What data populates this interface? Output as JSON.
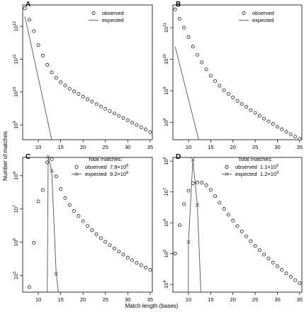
{
  "figure": {
    "ylabel": "Number of matches",
    "xlabel": "Match length (bases)"
  },
  "chart_data": [
    {
      "panel": "A",
      "type": "scatter",
      "scale": "log",
      "xlim": [
        6.5,
        35.5
      ],
      "ylim_log10": [
        8.55,
        12.65
      ],
      "xticks": [
        10,
        15,
        20,
        25,
        30,
        35
      ],
      "yticks": [
        {
          "exp": 9,
          "label": "10",
          "sup": "9"
        },
        {
          "exp": 10,
          "label": "10",
          "sup": "10"
        },
        {
          "exp": 11,
          "label": "10",
          "sup": "11"
        },
        {
          "exp": 12,
          "label": "10",
          "sup": "12"
        }
      ],
      "legend": {
        "observed": "observed",
        "expected": "expected",
        "title": "",
        "observed_value": "",
        "expected_value": ""
      },
      "series": [
        {
          "name": "observed",
          "style": "points",
          "x": [
            7,
            8,
            9,
            10,
            11,
            12,
            13,
            14,
            15,
            16,
            17,
            18,
            19,
            20,
            21,
            22,
            23,
            24,
            25,
            26,
            27,
            28,
            29,
            30,
            31,
            32,
            33,
            34,
            35
          ],
          "log10_y": [
            12.55,
            12.2,
            11.85,
            11.43,
            11.11,
            10.83,
            10.6,
            10.43,
            10.3,
            10.2,
            10.1,
            10.02,
            9.94,
            9.86,
            9.78,
            9.71,
            9.63,
            9.56,
            9.49,
            9.42,
            9.35,
            9.28,
            9.21,
            9.14,
            9.07,
            9.0,
            8.93,
            8.86,
            8.78
          ]
        },
        {
          "name": "expected",
          "style": "line",
          "x": [
            7,
            13
          ],
          "log10_y": [
            12.3,
            8.55
          ]
        }
      ]
    },
    {
      "panel": "B",
      "type": "scatter",
      "scale": "log",
      "xlim": [
        6.5,
        35.5
      ],
      "ylim_log10": [
        7.45,
        11.72
      ],
      "xticks": [
        10,
        15,
        20,
        25,
        30,
        35
      ],
      "yticks": [
        {
          "exp": 8,
          "label": "10",
          "sup": "8"
        },
        {
          "exp": 9,
          "label": "10",
          "sup": "9"
        },
        {
          "exp": 10,
          "label": "10",
          "sup": "10"
        },
        {
          "exp": 11,
          "label": "10",
          "sup": "11"
        }
      ],
      "legend": {
        "observed": "observed",
        "expected": "expected",
        "title": "",
        "observed_value": "",
        "expected_value": ""
      },
      "series": [
        {
          "name": "observed",
          "style": "points",
          "x": [
            7,
            8,
            9,
            10,
            11,
            12,
            13,
            14,
            15,
            16,
            17,
            18,
            19,
            20,
            21,
            22,
            23,
            24,
            25,
            26,
            27,
            28,
            29,
            30,
            31,
            32,
            33,
            34,
            35
          ],
          "log10_y": [
            11.58,
            11.28,
            11.0,
            10.7,
            10.4,
            10.14,
            9.9,
            9.68,
            9.48,
            9.31,
            9.16,
            9.02,
            8.9,
            8.79,
            8.68,
            8.58,
            8.49,
            8.39,
            8.3,
            8.21,
            8.12,
            8.03,
            7.95,
            7.86,
            7.78,
            7.7,
            7.62,
            7.55,
            7.48
          ]
        },
        {
          "name": "expected",
          "style": "line",
          "x": [
            7,
            12.3
          ],
          "log10_y": [
            10.4,
            7.45
          ]
        }
      ]
    },
    {
      "panel": "C",
      "type": "scatter",
      "scale": "log",
      "xlim": [
        6.5,
        35.5
      ],
      "ylim_log10": [
        4.5,
        8.55
      ],
      "xticks": [
        10,
        15,
        20,
        25,
        30,
        35
      ],
      "yticks": [
        {
          "exp": 5,
          "label": "10",
          "sup": "5"
        },
        {
          "exp": 6,
          "label": "10",
          "sup": "6"
        },
        {
          "exp": 7,
          "label": "10",
          "sup": "7"
        },
        {
          "exp": 8,
          "label": "10",
          "sup": "8"
        }
      ],
      "legend": {
        "title": "Total matches:",
        "observed": "observed",
        "observed_value": "7.8×10",
        "observed_exp": "8",
        "expected": "expected",
        "expected_value": "9.2×10",
        "expected_exp": "8"
      },
      "series": [
        {
          "name": "observed",
          "style": "points",
          "x": [
            8,
            9,
            10,
            11,
            12,
            13,
            14,
            15,
            16,
            17,
            18,
            19,
            20,
            21,
            22,
            23,
            24,
            25,
            26,
            27,
            28,
            29,
            30,
            31,
            32,
            33,
            34,
            35
          ],
          "log10_y": [
            4.65,
            5.98,
            7.23,
            7.57,
            8.4,
            8.5,
            7.98,
            7.6,
            7.33,
            7.12,
            6.94,
            6.79,
            6.63,
            6.49,
            6.36,
            6.24,
            6.12,
            6.01,
            5.91,
            5.81,
            5.72,
            5.63,
            5.54,
            5.46,
            5.38,
            5.31,
            5.24,
            5.17
          ]
        },
        {
          "name": "expected",
          "style": "line-cross",
          "x": [
            12,
            12.2,
            13,
            14,
            14.5
          ],
          "log10_y": [
            4.5,
            8.57,
            8.15,
            5.05,
            4.5
          ]
        }
      ]
    },
    {
      "panel": "D",
      "type": "scatter",
      "scale": "log",
      "xlim": [
        6.5,
        35.5
      ],
      "ylim_log10": [
        3.75,
        8.12
      ],
      "xticks": [
        10,
        15,
        20,
        25,
        30,
        35
      ],
      "yticks": [
        {
          "exp": 4,
          "label": "10",
          "sup": "4"
        },
        {
          "exp": 5,
          "label": "10",
          "sup": "5"
        },
        {
          "exp": 6,
          "label": "10",
          "sup": "6"
        },
        {
          "exp": 7,
          "label": "10",
          "sup": "7"
        },
        {
          "exp": 8,
          "label": "10",
          "sup": "8"
        }
      ],
      "legend": {
        "title": "Total matches:",
        "observed": "observed",
        "observed_value": "1.1×10",
        "observed_exp": "9",
        "expected": "expected",
        "expected_value": "1.2×10",
        "expected_exp": "9"
      },
      "series": [
        {
          "name": "observed",
          "style": "points",
          "x": [
            7,
            8,
            9,
            10,
            11,
            12,
            13,
            14,
            15,
            16,
            17,
            18,
            19,
            20,
            21,
            22,
            23,
            24,
            25,
            26,
            27,
            28,
            29,
            30,
            31,
            32,
            33,
            34,
            35
          ],
          "log10_y": [
            5.0,
            5.92,
            6.6,
            7.04,
            7.28,
            7.31,
            7.3,
            7.22,
            7.07,
            6.86,
            6.65,
            6.45,
            6.26,
            6.07,
            5.89,
            5.72,
            5.56,
            5.4,
            5.25,
            5.11,
            4.97,
            4.84,
            4.71,
            4.59,
            4.47,
            4.36,
            4.25,
            4.14,
            4.04
          ]
        },
        {
          "name": "expected",
          "style": "line-cross",
          "x": [
            9.95,
            10,
            11,
            12,
            12.8
          ],
          "log10_y": [
            3.75,
            5.38,
            8.05,
            6.58,
            3.75
          ]
        }
      ]
    }
  ]
}
